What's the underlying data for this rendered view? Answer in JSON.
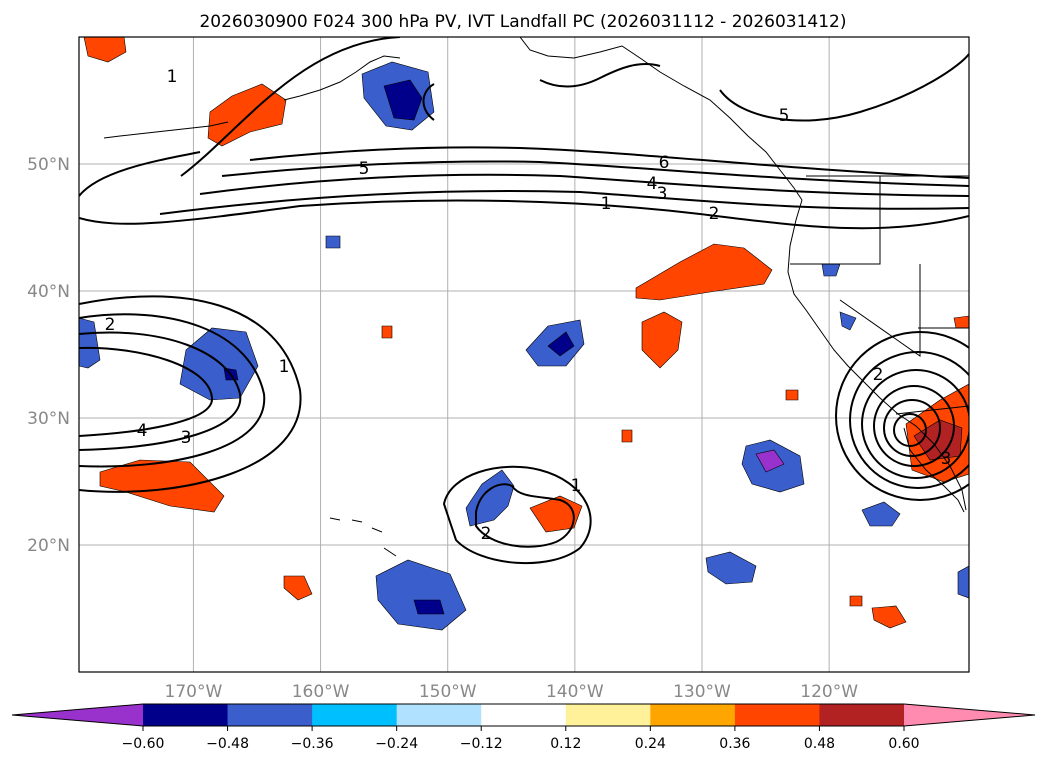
{
  "chart_data": {
    "type": "contour-map",
    "title": "2026030900 F024 300 hPa PV, IVT Landfall PC (2026031112 - 2026031412)",
    "map_extent": {
      "lon_min": -179,
      "lon_max": -109,
      "lat_min": 10,
      "lat_max": 60
    },
    "lon_ticks": [
      -170,
      -160,
      -150,
      -140,
      -130,
      -120
    ],
    "lon_tick_labels": [
      "170°W",
      "160°W",
      "150°W",
      "140°W",
      "130°W",
      "120°W"
    ],
    "lat_ticks": [
      20,
      30,
      40,
      50
    ],
    "lat_tick_labels": [
      "20°N",
      "30°N",
      "40°N",
      "50°N"
    ],
    "colorbar": {
      "orientation": "horizontal",
      "extend": "both",
      "levels": [
        -0.6,
        -0.48,
        -0.36,
        -0.24,
        -0.12,
        0.12,
        0.24,
        0.36,
        0.48,
        0.6
      ],
      "tick_labels": [
        "−0.60",
        "−0.48",
        "−0.36",
        "−0.24",
        "−0.12",
        "0.12",
        "0.24",
        "0.36",
        "0.48",
        "0.60"
      ],
      "colors": [
        "#9932cc",
        "#00008b",
        "#3a5fcd",
        "#00bfff",
        "#b0e2ff",
        "#ffffff",
        "#fff09a",
        "#ffa500",
        "#ff4500",
        "#b22222",
        "#ff8cb0"
      ]
    },
    "contour_labels": [
      "1",
      "2",
      "3",
      "4",
      "5",
      "6"
    ],
    "features": [
      {
        "name": "north-pacific-jet-band",
        "contour_levels": [
          1,
          2,
          3,
          4,
          5,
          6
        ],
        "lat_range": [
          46,
          51
        ]
      },
      {
        "name": "western-trough-low",
        "center": [
          -178,
          33
        ],
        "contour_levels": [
          1,
          2,
          3,
          4
        ]
      },
      {
        "name": "hawaii-cutoff",
        "center": [
          -146,
          23
        ],
        "contour_levels": [
          1,
          2
        ]
      },
      {
        "name": "southern-california-low",
        "center": [
          -115,
          29
        ],
        "contour_levels": [
          1,
          2,
          3,
          4,
          5,
          6
        ]
      },
      {
        "name": "gulf-of-alaska-ridge",
        "contour_levels": [
          5
        ]
      }
    ]
  }
}
